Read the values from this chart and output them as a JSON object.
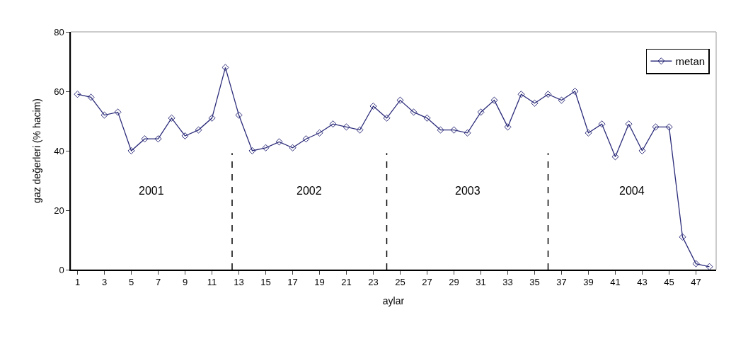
{
  "chart_data": {
    "type": "line",
    "xlabel": "aylar",
    "ylabel": "gaz değerleri (% hacim)",
    "x": [
      1,
      2,
      3,
      4,
      5,
      6,
      7,
      8,
      9,
      10,
      11,
      12,
      13,
      14,
      15,
      16,
      17,
      18,
      19,
      20,
      21,
      22,
      23,
      24,
      25,
      26,
      27,
      28,
      29,
      30,
      31,
      32,
      33,
      34,
      35,
      36,
      37,
      38,
      39,
      40,
      41,
      42,
      43,
      44,
      45,
      46,
      47,
      48
    ],
    "series": [
      {
        "name": "metan",
        "color": "#2b2b7a",
        "values": [
          59,
          58,
          52,
          53,
          40,
          44,
          44,
          51,
          45,
          47,
          51,
          68,
          52,
          40,
          41,
          43,
          41,
          44,
          46,
          49,
          48,
          47,
          55,
          51,
          57,
          53,
          51,
          47,
          47,
          46,
          53,
          57,
          48,
          59,
          56,
          59,
          57,
          60,
          46,
          49,
          38,
          49,
          40,
          48,
          48,
          11,
          2,
          1
        ]
      }
    ],
    "xlim": [
      0.5,
      48.5
    ],
    "xticks": [
      1,
      3,
      5,
      7,
      9,
      11,
      13,
      15,
      17,
      19,
      21,
      23,
      25,
      27,
      29,
      31,
      33,
      35,
      37,
      39,
      41,
      43,
      45,
      47
    ],
    "ylim": [
      0,
      80
    ],
    "yticks": [
      0,
      20,
      40,
      60,
      80
    ],
    "ref_lines": [
      {
        "axis": "x",
        "value": 12.5,
        "line_style": "dashed",
        "color": "#000000"
      },
      {
        "axis": "x",
        "value": 24,
        "line_style": "dashed",
        "color": "#000000"
      },
      {
        "axis": "x",
        "value": 36,
        "line_style": "dashed",
        "color": "#000000"
      }
    ],
    "annotations": [
      "2001",
      "2002",
      "2003",
      "2004"
    ],
    "grid": false,
    "legend": "top right",
    "marker": "diamond",
    "line_style": "solid"
  }
}
